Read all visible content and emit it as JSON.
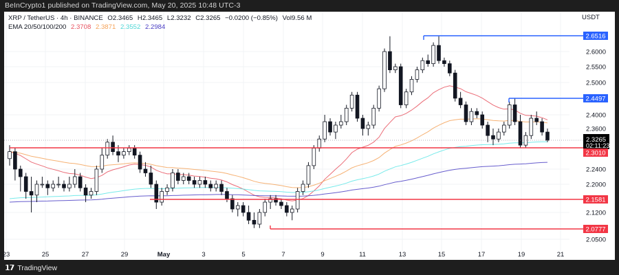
{
  "header": {
    "published": "BeInCrypto1 published on TradingView.com, May 20, 2025 10:48 UTC-3"
  },
  "legend": {
    "symbol": "XRP / TetherUS · 4h · BINANCE",
    "open": "O2.3465",
    "high": "H2.3465",
    "low": "L2.3232",
    "close": "C2.3265",
    "change": "−0.0200 (−0.85%)",
    "volume": "Vol9.56 M",
    "ema_label": "EMA 20/50/100/200",
    "ema20": "2.3708",
    "ema50": "2.3871",
    "ema100": "2.3552",
    "ema200": "2.2984"
  },
  "axis": {
    "currency": "USDT"
  },
  "footer": {
    "brand": "TradingView",
    "logo_icon": "tradingview-logo-icon"
  },
  "colors": {
    "ema20": "#e8525f",
    "ema50": "#f5a35a",
    "ema100": "#5ee6e6",
    "ema200": "#4b3fc4",
    "resistance": "#2962ff",
    "support": "#f23645",
    "price_label_bg": "#000000"
  },
  "chart_data": {
    "type": "candlestick",
    "title": "XRP / TetherUS · 4h · BINANCE",
    "xlabel": "",
    "ylabel": "USDT",
    "ylim": [
      2.03,
      2.67
    ],
    "scale": "log",
    "grid": true,
    "x_ticks": [
      "23",
      "25",
      "27",
      "29",
      "May",
      "3",
      "5",
      "7",
      "9",
      "11",
      "13",
      "15",
      "17",
      "19",
      "21"
    ],
    "y_ticks": [
      2.6,
      2.55,
      2.5,
      2.4,
      2.36,
      2.24,
      2.2,
      2.12,
      2.05
    ],
    "price_labels": [
      {
        "value": "2.6516",
        "type": "resistance",
        "color": "#2962ff"
      },
      {
        "value": "2.4497",
        "type": "resistance",
        "color": "#2962ff"
      },
      {
        "value": "2.3265",
        "type": "last_price",
        "countdown": "02:11:23",
        "color": "#000000"
      },
      {
        "value": "2.3010",
        "type": "support",
        "color": "#f23645"
      },
      {
        "value": "2.1581",
        "type": "support",
        "color": "#f23645"
      },
      {
        "value": "2.0777",
        "type": "support",
        "color": "#f23645"
      }
    ],
    "horizontal_lines": [
      {
        "price": 2.6516,
        "x_start_date": "May 14",
        "color": "#2962ff"
      },
      {
        "price": 2.4497,
        "x_start_date": "May 18",
        "color": "#2962ff"
      },
      {
        "price": 2.301,
        "x_start_date": "Apr 22",
        "color": "#f23645"
      },
      {
        "price": 2.1581,
        "x_start_date": "Apr 29",
        "color": "#f23645"
      },
      {
        "price": 2.0777,
        "x_start_date": "May 6",
        "color": "#f23645"
      }
    ],
    "last_price": 2.3265,
    "ema": [
      {
        "name": "EMA 20",
        "value": 2.3708,
        "color": "#e8525f"
      },
      {
        "name": "EMA 50",
        "value": 2.3871,
        "color": "#f5a35a"
      },
      {
        "name": "EMA 100",
        "value": 2.3552,
        "color": "#5ee6e6"
      },
      {
        "name": "EMA 200",
        "value": 2.2984,
        "color": "#4b3fc4"
      }
    ],
    "ohlc": [
      [
        2.27,
        2.31,
        2.25,
        2.29
      ],
      [
        2.29,
        2.3,
        2.21,
        2.24
      ],
      [
        2.24,
        2.25,
        2.18,
        2.22
      ],
      [
        2.22,
        2.23,
        2.16,
        2.18
      ],
      [
        2.18,
        2.22,
        2.12,
        2.17
      ],
      [
        2.17,
        2.21,
        2.15,
        2.2
      ],
      [
        2.2,
        2.22,
        2.19,
        2.2
      ],
      [
        2.2,
        2.21,
        2.17,
        2.19
      ],
      [
        2.19,
        2.21,
        2.18,
        2.2
      ],
      [
        2.2,
        2.22,
        2.19,
        2.2
      ],
      [
        2.2,
        2.21,
        2.18,
        2.19
      ],
      [
        2.19,
        2.22,
        2.18,
        2.2
      ],
      [
        2.2,
        2.24,
        2.19,
        2.22
      ],
      [
        2.22,
        2.23,
        2.18,
        2.19
      ],
      [
        2.19,
        2.2,
        2.15,
        2.17
      ],
      [
        2.17,
        2.19,
        2.16,
        2.18
      ],
      [
        2.18,
        2.25,
        2.17,
        2.24
      ],
      [
        2.24,
        2.3,
        2.23,
        2.28
      ],
      [
        2.28,
        2.33,
        2.27,
        2.32
      ],
      [
        2.32,
        2.34,
        2.28,
        2.29
      ],
      [
        2.29,
        2.31,
        2.26,
        2.28
      ],
      [
        2.28,
        2.3,
        2.27,
        2.29
      ],
      [
        2.29,
        2.31,
        2.28,
        2.3
      ],
      [
        2.3,
        2.31,
        2.27,
        2.28
      ],
      [
        2.28,
        2.29,
        2.23,
        2.24
      ],
      [
        2.24,
        2.26,
        2.22,
        2.23
      ],
      [
        2.23,
        2.25,
        2.19,
        2.2
      ],
      [
        2.2,
        2.21,
        2.13,
        2.15
      ],
      [
        2.15,
        2.19,
        2.14,
        2.18
      ],
      [
        2.18,
        2.2,
        2.17,
        2.19
      ],
      [
        2.19,
        2.24,
        2.18,
        2.23
      ],
      [
        2.23,
        2.24,
        2.2,
        2.21
      ],
      [
        2.21,
        2.23,
        2.2,
        2.22
      ],
      [
        2.22,
        2.23,
        2.2,
        2.21
      ],
      [
        2.21,
        2.22,
        2.19,
        2.2
      ],
      [
        2.2,
        2.22,
        2.19,
        2.21
      ],
      [
        2.21,
        2.22,
        2.19,
        2.2
      ],
      [
        2.2,
        2.21,
        2.18,
        2.19
      ],
      [
        2.19,
        2.21,
        2.18,
        2.2
      ],
      [
        2.2,
        2.21,
        2.17,
        2.18
      ],
      [
        2.18,
        2.19,
        2.15,
        2.16
      ],
      [
        2.16,
        2.17,
        2.12,
        2.13
      ],
      [
        2.13,
        2.15,
        2.11,
        2.14
      ],
      [
        2.14,
        2.15,
        2.11,
        2.12
      ],
      [
        2.12,
        2.14,
        2.09,
        2.1
      ],
      [
        2.1,
        2.12,
        2.08,
        2.09
      ],
      [
        2.09,
        2.13,
        2.08,
        2.12
      ],
      [
        2.12,
        2.16,
        2.11,
        2.15
      ],
      [
        2.15,
        2.17,
        2.13,
        2.16
      ],
      [
        2.16,
        2.17,
        2.14,
        2.15
      ],
      [
        2.15,
        2.16,
        2.13,
        2.14
      ],
      [
        2.14,
        2.15,
        2.11,
        2.12
      ],
      [
        2.12,
        2.14,
        2.1,
        2.13
      ],
      [
        2.13,
        2.19,
        2.12,
        2.18
      ],
      [
        2.18,
        2.21,
        2.17,
        2.2
      ],
      [
        2.2,
        2.26,
        2.19,
        2.25
      ],
      [
        2.25,
        2.31,
        2.24,
        2.3
      ],
      [
        2.3,
        2.34,
        2.29,
        2.33
      ],
      [
        2.33,
        2.4,
        2.32,
        2.38
      ],
      [
        2.38,
        2.39,
        2.34,
        2.35
      ],
      [
        2.35,
        2.38,
        2.33,
        2.37
      ],
      [
        2.37,
        2.4,
        2.36,
        2.38
      ],
      [
        2.38,
        2.43,
        2.37,
        2.42
      ],
      [
        2.42,
        2.47,
        2.41,
        2.46
      ],
      [
        2.46,
        2.47,
        2.38,
        2.39
      ],
      [
        2.39,
        2.4,
        2.34,
        2.36
      ],
      [
        2.36,
        2.38,
        2.34,
        2.37
      ],
      [
        2.37,
        2.43,
        2.36,
        2.42
      ],
      [
        2.42,
        2.49,
        2.41,
        2.48
      ],
      [
        2.48,
        2.61,
        2.47,
        2.6
      ],
      [
        2.6,
        2.65,
        2.53,
        2.54
      ],
      [
        2.54,
        2.56,
        2.53,
        2.55
      ],
      [
        2.55,
        2.56,
        2.42,
        2.43
      ],
      [
        2.43,
        2.48,
        2.42,
        2.47
      ],
      [
        2.47,
        2.52,
        2.46,
        2.51
      ],
      [
        2.51,
        2.55,
        2.5,
        2.54
      ],
      [
        2.54,
        2.58,
        2.53,
        2.57
      ],
      [
        2.57,
        2.59,
        2.55,
        2.56
      ],
      [
        2.56,
        2.63,
        2.55,
        2.62
      ],
      [
        2.62,
        2.65,
        2.56,
        2.57
      ],
      [
        2.57,
        2.58,
        2.55,
        2.56
      ],
      [
        2.56,
        2.57,
        2.52,
        2.53
      ],
      [
        2.53,
        2.54,
        2.44,
        2.45
      ],
      [
        2.45,
        2.47,
        2.42,
        2.43
      ],
      [
        2.43,
        2.44,
        2.37,
        2.38
      ],
      [
        2.38,
        2.42,
        2.37,
        2.41
      ],
      [
        2.41,
        2.42,
        2.39,
        2.4
      ],
      [
        2.4,
        2.41,
        2.36,
        2.37
      ],
      [
        2.37,
        2.38,
        2.32,
        2.34
      ],
      [
        2.34,
        2.36,
        2.31,
        2.33
      ],
      [
        2.33,
        2.36,
        2.32,
        2.35
      ],
      [
        2.35,
        2.38,
        2.34,
        2.37
      ],
      [
        2.37,
        2.44,
        2.36,
        2.43
      ],
      [
        2.43,
        2.45,
        2.37,
        2.38
      ],
      [
        2.38,
        2.4,
        2.3,
        2.31
      ],
      [
        2.31,
        2.35,
        2.3,
        2.34
      ],
      [
        2.34,
        2.4,
        2.33,
        2.39
      ],
      [
        2.39,
        2.41,
        2.37,
        2.38
      ],
      [
        2.38,
        2.39,
        2.34,
        2.35
      ],
      [
        2.35,
        2.36,
        2.32,
        2.3265
      ]
    ]
  }
}
